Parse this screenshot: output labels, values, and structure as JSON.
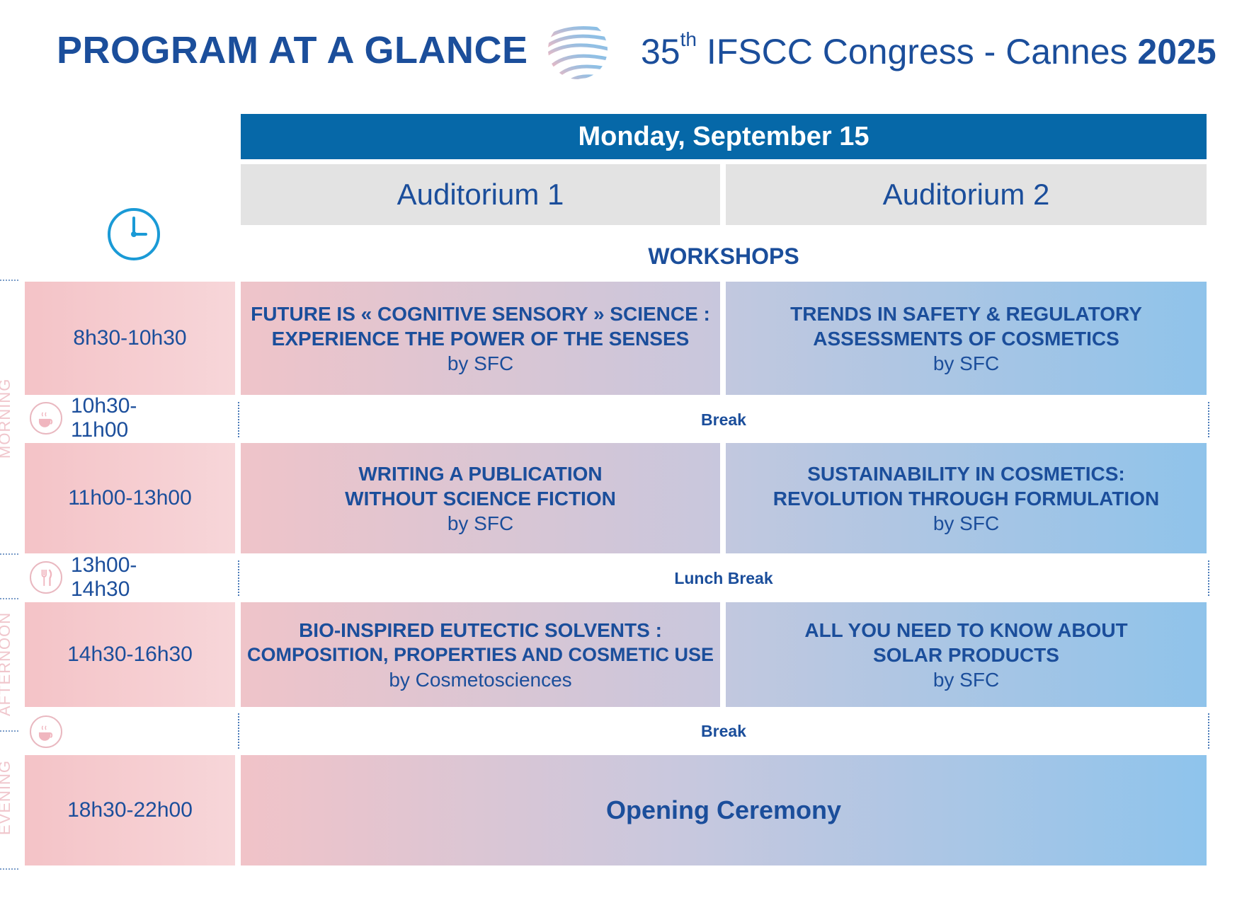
{
  "header": {
    "title": "PROGRAM AT A GLANCE",
    "congress_prefix": "35",
    "congress_sup": "th",
    "congress_text": " IFSCC Congress - Cannes ",
    "congress_year": "2025"
  },
  "day": "Monday, September 15",
  "columns": [
    "Auditorium 1",
    "Auditorium 2"
  ],
  "section": "WORKSHOPS",
  "periods": [
    "MORNING",
    "AFTERNOON",
    "EVENING"
  ],
  "slots": [
    {
      "time": "8h30-10h30",
      "left": {
        "title1": "FUTURE IS « COGNITIVE SENSORY » SCIENCE :",
        "title2": "EXPERIENCE THE POWER OF THE SENSES",
        "by": "by SFC"
      },
      "right": {
        "title1": "TRENDS IN SAFETY & REGULATORY",
        "title2": "ASSESSMENTS OF COSMETICS",
        "by": "by SFC"
      }
    },
    {
      "time": "11h00-13h00",
      "left": {
        "title1": "WRITING A PUBLICATION",
        "title2": "WITHOUT SCIENCE FICTION",
        "by": "by SFC"
      },
      "right": {
        "title1": "SUSTAINABILITY IN COSMETICS:",
        "title2": "REVOLUTION THROUGH FORMULATION",
        "by": "by SFC"
      }
    },
    {
      "time": "14h30-16h30",
      "left": {
        "title1": "BIO-INSPIRED EUTECTIC SOLVENTS :",
        "title2": "COMPOSITION, PROPERTIES AND COSMETIC USE",
        "by": "by Cosmetosciences"
      },
      "right": {
        "title1": "ALL YOU NEED TO KNOW ABOUT",
        "title2": "SOLAR PRODUCTS",
        "by": "by SFC"
      }
    },
    {
      "time": "18h30-22h00",
      "full": "Opening Ceremony"
    }
  ],
  "breaks": [
    {
      "time": "10h30-11h00",
      "label": "Break",
      "icon": "coffee-cup-icon"
    },
    {
      "time": "13h00-14h30",
      "label": "Lunch Break",
      "icon": "fork-knife-icon"
    },
    {
      "time": "",
      "label": "Break",
      "icon": "coffee-cup-icon"
    }
  ],
  "colors": {
    "brand_blue": "#1b4e9b",
    "day_bar": "#0668a8",
    "clock": "#1a9ad6"
  }
}
